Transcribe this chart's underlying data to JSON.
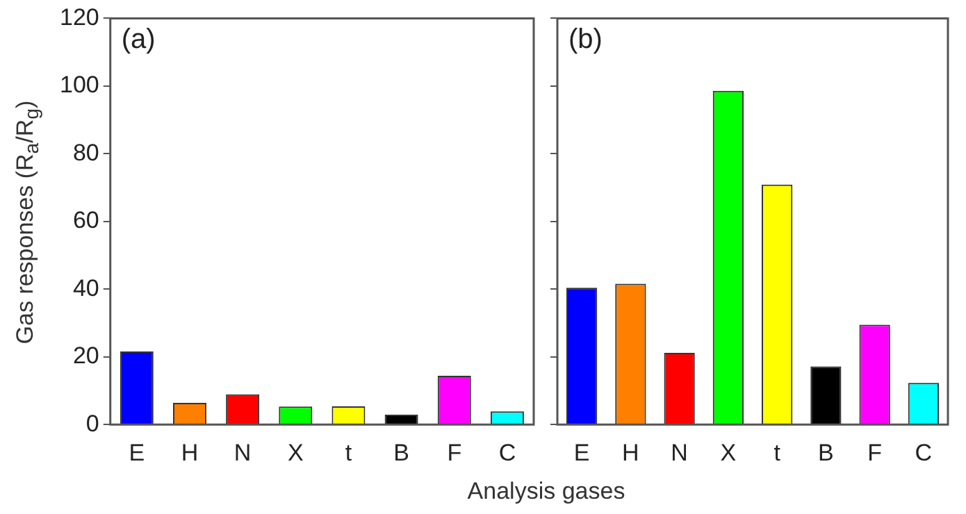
{
  "chart_data": [
    {
      "type": "bar",
      "title": "(a)",
      "ylabel": "Gas responses (R$_{a}$/R$_{g}$)",
      "xlabel": "Analysis gases",
      "categories": [
        "E",
        "H",
        "N",
        "X",
        "t",
        "B",
        "F",
        "C"
      ],
      "values": [
        21.6,
        6.4,
        8.9,
        5.3,
        5.4,
        2.9,
        14.4,
        3.9
      ],
      "colors": [
        "#0000ff",
        "#ff8000",
        "#ff0000",
        "#00ff00",
        "#ffff00",
        "#000000",
        "#ff00ff",
        "#00ffff"
      ],
      "ylim": [
        0,
        120
      ],
      "yticks": [
        0,
        20,
        40,
        60,
        80,
        100,
        120
      ],
      "grid": false
    },
    {
      "type": "bar",
      "title": "(b)",
      "categories": [
        "E",
        "H",
        "N",
        "X",
        "t",
        "B",
        "F",
        "C"
      ],
      "values": [
        40.4,
        41.6,
        21.2,
        98.6,
        70.9,
        17.2,
        29.5,
        12.3
      ],
      "colors": [
        "#0000ff",
        "#ff8000",
        "#ff0000",
        "#00ff00",
        "#ffff00",
        "#000000",
        "#ff00ff",
        "#00ffff"
      ],
      "ylim": [
        0,
        120
      ],
      "yticks": [
        {
          "value": 0,
          "label": null
        },
        {
          "value": 20,
          "label": null
        },
        {
          "value": 40,
          "label": null
        },
        {
          "value": 60,
          "label": null
        },
        {
          "value": 80,
          "label": null
        },
        {
          "value": 100,
          "label": null
        },
        {
          "value": 120,
          "label": null
        }
      ],
      "tick_labels": "x",
      "grid": false
    }
  ]
}
